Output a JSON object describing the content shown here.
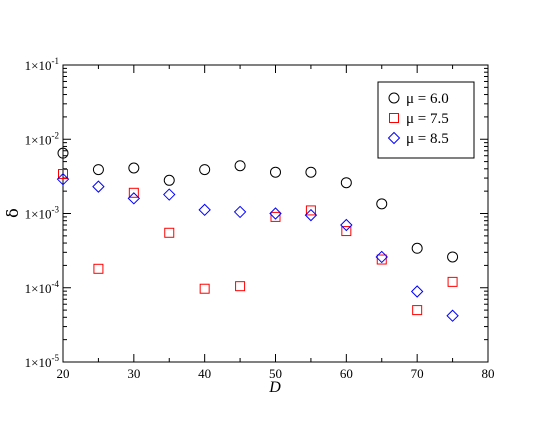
{
  "chart_data": {
    "type": "scatter",
    "title": "",
    "xlabel": "D",
    "ylabel": "δ",
    "xlim": [
      20,
      80
    ],
    "ylim": [
      1e-05,
      0.1
    ],
    "yscale": "log",
    "grid": false,
    "legend_position": "top-right",
    "x_ticks": [
      20,
      30,
      40,
      50,
      60,
      70,
      80
    ],
    "y_ticks": [
      {
        "value": 1e-05,
        "base": "1×10",
        "exp": "-5"
      },
      {
        "value": 0.0001,
        "base": "1×10",
        "exp": "-4"
      },
      {
        "value": 0.001,
        "base": "1×10",
        "exp": "-3"
      },
      {
        "value": 0.01,
        "base": "1×10",
        "exp": "-2"
      },
      {
        "value": 0.1,
        "base": "1×10",
        "exp": "-1"
      }
    ],
    "series": [
      {
        "name": "μ = 6.0",
        "marker": "circle",
        "color": "#000000",
        "x": [
          20,
          25,
          30,
          35,
          40,
          45,
          50,
          55,
          60,
          65,
          70,
          75
        ],
        "y": [
          0.0065,
          0.0039,
          0.0041,
          0.0028,
          0.0039,
          0.0044,
          0.0036,
          0.0036,
          0.0026,
          0.00135,
          0.00034,
          0.00026
        ]
      },
      {
        "name": "μ = 7.5",
        "marker": "square",
        "color": "#ff0000",
        "x": [
          20,
          25,
          30,
          35,
          40,
          45,
          50,
          55,
          60,
          65,
          70,
          75
        ],
        "y": [
          0.0034,
          0.00018,
          0.0019,
          0.00055,
          9.7e-05,
          0.000105,
          0.0009,
          0.0011,
          0.00058,
          0.00024,
          5e-05,
          0.00012
        ]
      },
      {
        "name": "μ = 8.5",
        "marker": "diamond",
        "color": "#0000ff",
        "x": [
          20,
          25,
          30,
          35,
          40,
          45,
          50,
          55,
          60,
          65,
          70,
          75
        ],
        "y": [
          0.0029,
          0.0023,
          0.0016,
          0.0018,
          0.00112,
          0.00105,
          0.001,
          0.00095,
          0.0007,
          0.00026,
          8.9e-05,
          4.2e-05
        ]
      }
    ]
  }
}
